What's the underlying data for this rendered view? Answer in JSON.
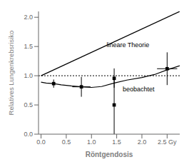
{
  "chart_data": {
    "type": "line",
    "xlabel": "Röntgendosis",
    "ylabel": "Relatives Lungenkrebsrisiko",
    "xlim": [
      -0.05,
      2.75
    ],
    "ylim": [
      0.0,
      2.1
    ],
    "xticks": [
      {
        "value": 0.0,
        "label": "0.0"
      },
      0.5,
      {
        "value": 1.0,
        "label": "1.0"
      },
      1.5,
      {
        "value": 2.0,
        "label": "2.0"
      },
      {
        "value": 2.5,
        "label": "2.5 Gy"
      }
    ],
    "yticks": [
      {
        "value": 0,
        "label": "0.0"
      },
      0.5,
      {
        "value": 1.0,
        "label": "1.0"
      },
      1.5,
      {
        "value": 2.0,
        "label": "2.0"
      }
    ],
    "grid": false,
    "reference_lines": [
      {
        "y": 1.0,
        "line_style": "dotted",
        "color": "#000000"
      }
    ],
    "series": [
      {
        "type": "line",
        "x": [
          0.0,
          2.75
        ],
        "values": [
          1.0,
          2.1
        ],
        "color": "#000000",
        "line_style": "solid"
      },
      {
        "type": "line",
        "x": [
          0.0,
          0.1,
          0.25,
          0.4,
          0.6,
          0.8,
          1.0,
          1.2,
          1.45,
          1.7,
          2.0,
          2.25,
          2.5,
          2.75
        ],
        "values": [
          0.89,
          0.875,
          0.865,
          0.845,
          0.825,
          0.81,
          0.8,
          0.815,
          0.875,
          0.925,
          0.97,
          1.02,
          1.1,
          1.17
        ],
        "color": "#000000",
        "line_style": "solid"
      },
      {
        "type": "scatter",
        "marker": "square",
        "color": "#000000",
        "x": [
          0.25,
          0.8,
          1.45,
          1.45,
          2.5
        ],
        "values": [
          0.865,
          0.81,
          0.5,
          0.955,
          1.12
        ],
        "xerr": [
          0.0,
          0.18,
          0.0,
          0.0,
          0.2
        ],
        "yerr_lo": [
          0.07,
          0.17,
          0.5,
          0.16,
          0.28
        ],
        "yerr_hi": [
          0.07,
          0.17,
          0.45,
          0.17,
          0.28
        ]
      }
    ],
    "annotations": [
      {
        "text": "lineare Theorie",
        "x": 1.3,
        "y": 1.47
      },
      {
        "text": "beobachtet",
        "x": 1.62,
        "y": 0.83
      }
    ]
  }
}
